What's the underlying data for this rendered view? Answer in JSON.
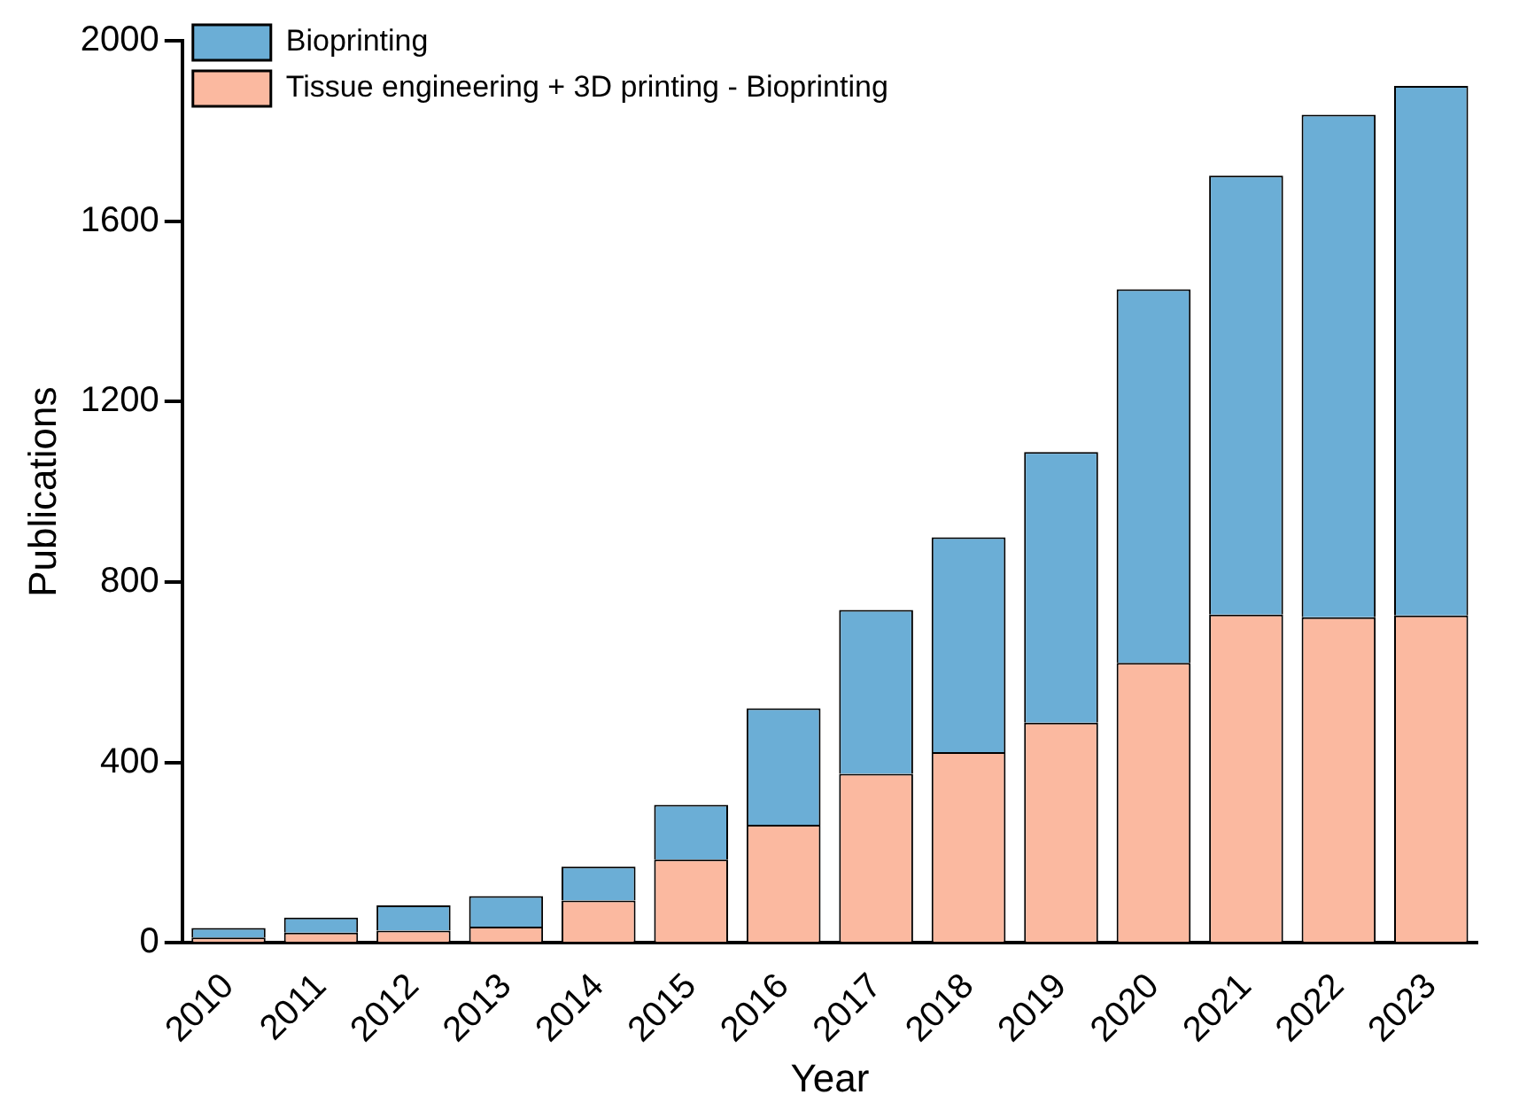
{
  "chart_data": {
    "type": "bar",
    "xlabel": "Year",
    "ylabel": "Publications",
    "categories": [
      "2010",
      "2011",
      "2012",
      "2013",
      "2014",
      "2015",
      "2016",
      "2017",
      "2018",
      "2019",
      "2020",
      "2021",
      "2022",
      "2023"
    ],
    "stacked": true,
    "ylim": [
      0,
      2000
    ],
    "yticks": [
      0,
      400,
      800,
      1200,
      1600,
      2000
    ],
    "grid": false,
    "legend": "top left",
    "series": [
      {
        "name": "Tissue engineering + 3D printing - Bioprinting",
        "color": "#fbb9a0",
        "values": [
          12,
          23,
          27,
          36,
          94,
          185,
          262,
          375,
          423,
          488,
          621,
          728,
          722,
          726
        ]
      },
      {
        "name": "Bioprinting",
        "color": "#6baed6",
        "values": [
          21,
          33,
          56,
          68,
          75,
          121,
          258,
          363,
          476,
          600,
          828,
          973,
          1114,
          1174
        ]
      }
    ]
  }
}
